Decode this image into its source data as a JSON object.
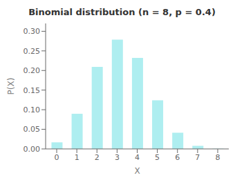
{
  "chart_data": {
    "type": "bar",
    "title": "Binomial distribution (n = 8, p = 0.4)",
    "xlabel": "X",
    "ylabel": "P(X)",
    "x": [
      0,
      1,
      2,
      3,
      4,
      5,
      6,
      7,
      8
    ],
    "values": [
      0.01679616,
      0.08957952,
      0.20901888,
      0.27869184,
      0.2322432,
      0.12386304,
      0.04128768,
      0.00786432,
      0.00065536
    ],
    "color": "#aeeef0",
    "xlim": [
      -0.55,
      8.55
    ],
    "xticks": [
      0,
      1,
      2,
      3,
      4,
      5,
      6,
      7,
      8
    ],
    "ylim": [
      0,
      0.32
    ],
    "yticks": [
      {
        "value": 0.0,
        "label": "0.00"
      },
      {
        "value": 0.05,
        "label": "0.05"
      },
      {
        "value": 0.1,
        "label": "0.10"
      },
      {
        "value": 0.15,
        "label": "0.15"
      },
      {
        "value": 0.2,
        "label": "0.20"
      },
      {
        "value": 0.25,
        "label": "0.25"
      },
      {
        "value": 0.3,
        "label": "0.30"
      }
    ],
    "grid": false
  }
}
